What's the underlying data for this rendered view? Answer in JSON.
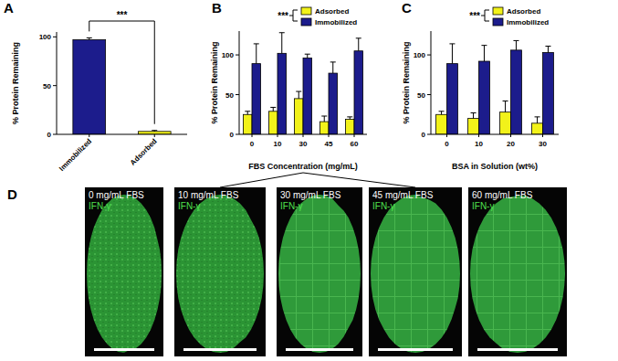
{
  "chart_data": [
    {
      "panel": "A",
      "type": "bar",
      "y_label": "% Protein Remaining",
      "categories": [
        "Immobilized",
        "Adsorbed"
      ],
      "values": [
        97,
        3
      ],
      "errors": [
        2,
        1
      ],
      "colors": [
        "#1c1c8c",
        "#f2f21a"
      ],
      "ylim": [
        0,
        105
      ],
      "yticks": [
        0,
        50,
        100
      ],
      "significance": "***"
    },
    {
      "panel": "B",
      "type": "bar",
      "y_label": "% Protein Remaining",
      "x_label": "FBS Concentration (mg/mL)",
      "categories": [
        "0",
        "10",
        "30",
        "45",
        "60"
      ],
      "series": [
        {
          "name": "Adsorbed",
          "color": "#f2f21a",
          "values": [
            25,
            29,
            45,
            16,
            19
          ],
          "errors": [
            4,
            5,
            9,
            7,
            3
          ]
        },
        {
          "name": "Immobilized",
          "color": "#1c1c8c",
          "values": [
            89,
            102,
            96,
            77,
            105
          ],
          "errors": [
            25,
            26,
            5,
            14,
            16
          ]
        }
      ],
      "ylim": [
        0,
        130
      ],
      "yticks": [
        0,
        50,
        100
      ],
      "legend": "top",
      "significance": "***"
    },
    {
      "panel": "C",
      "type": "bar",
      "y_label": "% Protein Remaining",
      "x_label": "BSA in Solution (wt%)",
      "categories": [
        "0",
        "10",
        "20",
        "30"
      ],
      "series": [
        {
          "name": "Adsorbed",
          "color": "#f2f21a",
          "values": [
            25,
            20,
            28,
            14
          ],
          "errors": [
            4,
            7,
            14,
            8
          ]
        },
        {
          "name": "Immobilized",
          "color": "#1c1c8c",
          "values": [
            89,
            92,
            106,
            103
          ],
          "errors": [
            25,
            20,
            12,
            8
          ]
        }
      ],
      "ylim": [
        0,
        130
      ],
      "yticks": [
        0,
        50,
        100
      ],
      "legend": "top",
      "significance": "***"
    }
  ],
  "image_panel": {
    "panel": "D",
    "images": [
      {
        "caption": "0 mg/mL FBS",
        "stain": "IFN-γ"
      },
      {
        "caption": "10 mg/mL FBS",
        "stain": "IFN-γ"
      },
      {
        "caption": "30 mg/mL FBS",
        "stain": "IFN-γ"
      },
      {
        "caption": "45 mg/mL FBS",
        "stain": "IFN-γ"
      },
      {
        "caption": "60 mg/mL FBS",
        "stain": "IFN-γ"
      }
    ]
  }
}
